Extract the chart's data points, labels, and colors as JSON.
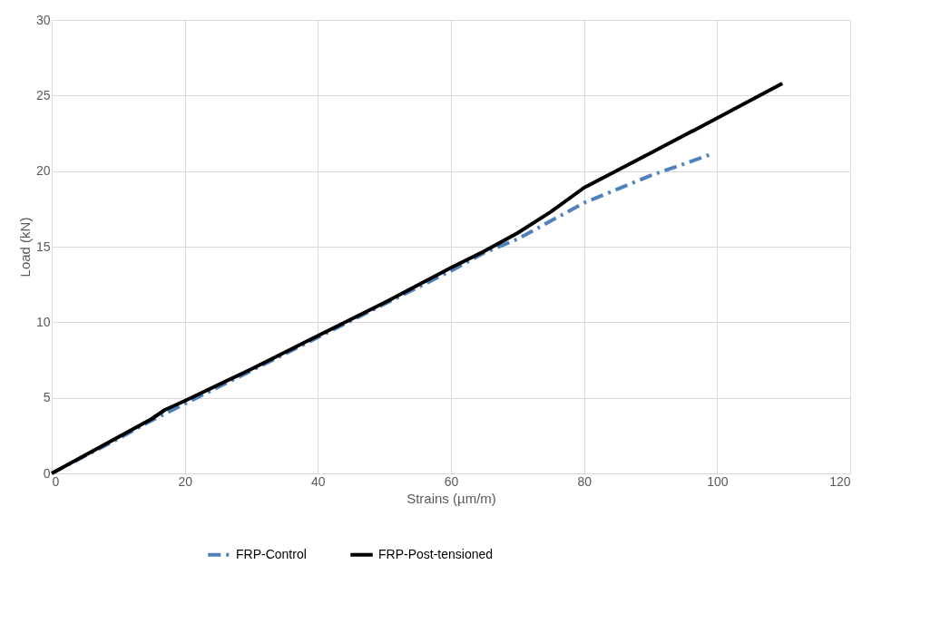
{
  "chart_data": {
    "type": "line",
    "xlabel": "Strains (µm/m)",
    "ylabel": "Load (kN)",
    "xlim": [
      0,
      120
    ],
    "xticks": [
      0,
      20,
      40,
      60,
      80,
      100,
      120
    ],
    "ylim": [
      0,
      30
    ],
    "yticks": [
      0,
      5,
      10,
      15,
      20,
      25,
      30
    ],
    "grid": true,
    "legend": "bottom",
    "series": [
      {
        "name": "FRP-Control",
        "color": "#4f81bd",
        "line_style": "dashed",
        "x": [
          0,
          10,
          15,
          20,
          30,
          40,
          50,
          60,
          65,
          70,
          80,
          90,
          99
        ],
        "values": [
          0,
          2.3,
          3.5,
          4.6,
          6.8,
          9.0,
          11.2,
          13.4,
          14.6,
          15.5,
          17.9,
          19.7,
          21.1
        ]
      },
      {
        "name": "FRP-Post-tensioned",
        "color": "#000000",
        "line_style": "solid",
        "x": [
          0,
          5,
          10,
          15,
          17,
          20,
          30,
          40,
          50,
          60,
          65,
          70,
          75,
          80,
          90,
          100,
          109.8
        ],
        "values": [
          0,
          1.2,
          2.4,
          3.6,
          4.2,
          4.8,
          6.9,
          9.1,
          11.3,
          13.6,
          14.7,
          15.9,
          17.3,
          18.9,
          21.2,
          23.5,
          25.8
        ]
      }
    ]
  }
}
